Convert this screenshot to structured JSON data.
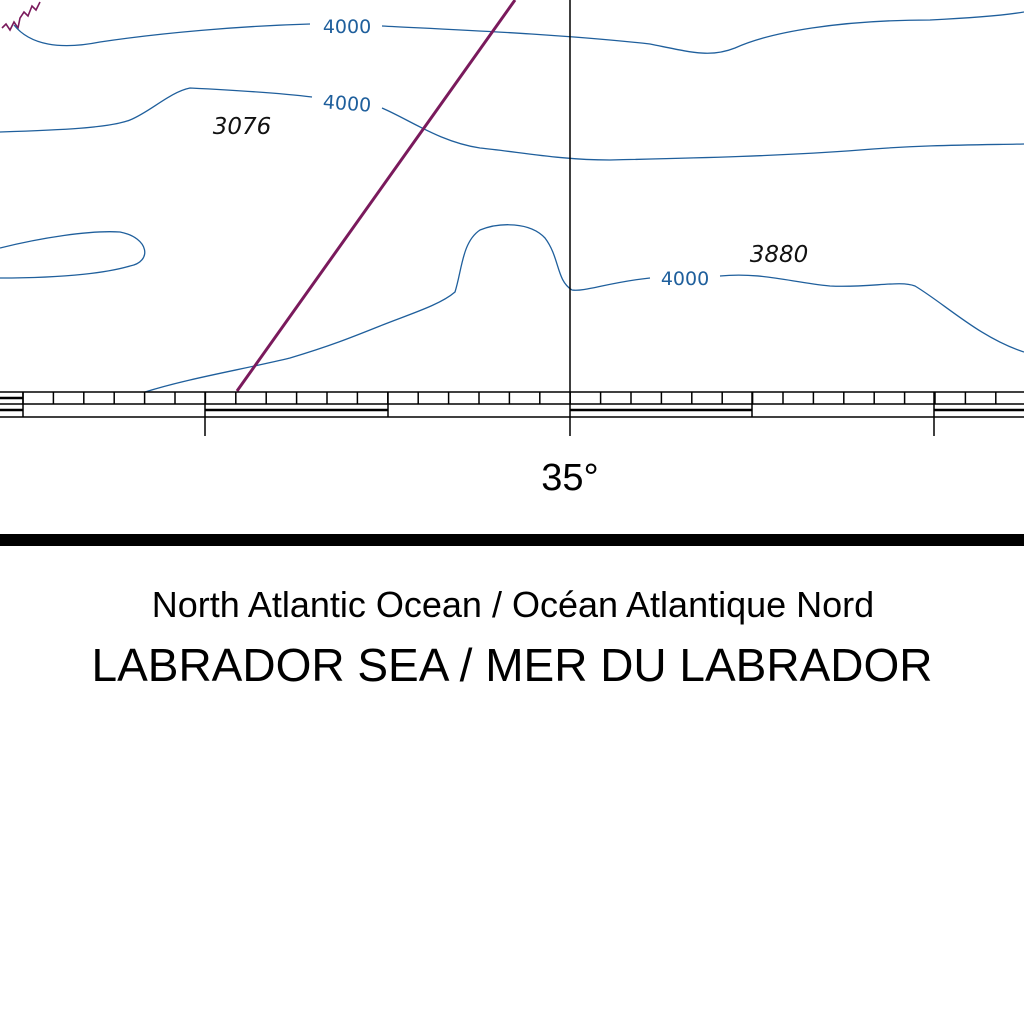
{
  "map": {
    "contours": [
      {
        "depth_label": "4000"
      },
      {
        "depth_label": "4000"
      },
      {
        "depth_label": "4000"
      }
    ],
    "soundings": [
      "3076",
      "3880"
    ],
    "meridian_label": "35°"
  },
  "colors": {
    "contour": "#1f5f9c",
    "boundary": "#7a1a5c",
    "text": "#000000"
  },
  "title": {
    "region": "North Atlantic Ocean / Océan Atlantique Nord",
    "name": "LABRADOR SEA / MER DU LABRADOR"
  }
}
